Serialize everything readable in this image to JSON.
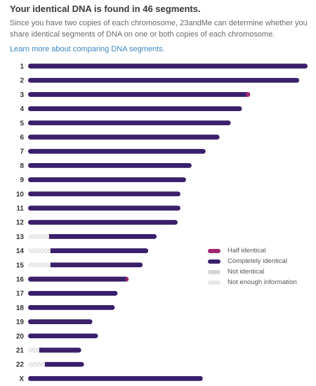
{
  "header": {
    "title": "Your identical DNA is found in 46 segments.",
    "description": "Since you have two copies of each chromosome, 23andMe can determine whether you share identical segments of DNA on one or both copies of each chromosome.",
    "link_text": "Learn more about comparing DNA segments."
  },
  "colors": {
    "half_identical": "#a0286e",
    "completely_identical": "#3a1f6b",
    "not_identical": "#d6d6d6",
    "not_enough_information": "#e8e8e8"
  },
  "legend": [
    {
      "key": "half_identical",
      "label": "Half identical"
    },
    {
      "key": "completely_identical",
      "label": "Completely identical"
    },
    {
      "key": "not_identical",
      "label": "Not identical"
    },
    {
      "key": "not_enough_information",
      "label": "Not enough information"
    }
  ],
  "chart_data": {
    "type": "bar",
    "unit": "fraction of chromosome 1 length",
    "chromosomes": [
      {
        "label": "1",
        "length": 1.0,
        "segments": [
          {
            "start": 0,
            "end": 1.0,
            "state": "completely_identical"
          }
        ]
      },
      {
        "label": "2",
        "length": 0.97,
        "segments": [
          {
            "start": 0,
            "end": 0.97,
            "state": "completely_identical"
          }
        ]
      },
      {
        "label": "3",
        "length": 0.795,
        "segments": [
          {
            "start": 0,
            "end": 0.78,
            "state": "completely_identical"
          },
          {
            "start": 0.78,
            "end": 0.795,
            "state": "half_identical"
          }
        ]
      },
      {
        "label": "4",
        "length": 0.765,
        "segments": [
          {
            "start": 0,
            "end": 0.765,
            "state": "completely_identical"
          }
        ]
      },
      {
        "label": "5",
        "length": 0.725,
        "segments": [
          {
            "start": 0,
            "end": 0.725,
            "state": "completely_identical"
          }
        ]
      },
      {
        "label": "6",
        "length": 0.685,
        "segments": [
          {
            "start": 0,
            "end": 0.685,
            "state": "completely_identical"
          }
        ]
      },
      {
        "label": "7",
        "length": 0.635,
        "segments": [
          {
            "start": 0,
            "end": 0.635,
            "state": "completely_identical"
          }
        ]
      },
      {
        "label": "8",
        "length": 0.585,
        "segments": [
          {
            "start": 0,
            "end": 0.585,
            "state": "completely_identical"
          }
        ]
      },
      {
        "label": "9",
        "length": 0.565,
        "segments": [
          {
            "start": 0,
            "end": 0.565,
            "state": "completely_identical"
          }
        ]
      },
      {
        "label": "10",
        "length": 0.545,
        "segments": [
          {
            "start": 0,
            "end": 0.545,
            "state": "completely_identical"
          }
        ]
      },
      {
        "label": "11",
        "length": 0.545,
        "segments": [
          {
            "start": 0,
            "end": 0.545,
            "state": "completely_identical"
          }
        ]
      },
      {
        "label": "12",
        "length": 0.535,
        "segments": [
          {
            "start": 0,
            "end": 0.535,
            "state": "completely_identical"
          }
        ]
      },
      {
        "label": "13",
        "length": 0.46,
        "segments": [
          {
            "start": 0,
            "end": 0.075,
            "state": "not_enough_information"
          },
          {
            "start": 0.075,
            "end": 0.46,
            "state": "completely_identical"
          }
        ]
      },
      {
        "label": "14",
        "length": 0.43,
        "segments": [
          {
            "start": 0,
            "end": 0.08,
            "state": "not_enough_information"
          },
          {
            "start": 0.08,
            "end": 0.43,
            "state": "completely_identical"
          }
        ]
      },
      {
        "label": "15",
        "length": 0.41,
        "segments": [
          {
            "start": 0,
            "end": 0.08,
            "state": "not_enough_information"
          },
          {
            "start": 0.08,
            "end": 0.41,
            "state": "completely_identical"
          }
        ]
      },
      {
        "label": "16",
        "length": 0.36,
        "segments": [
          {
            "start": 0,
            "end": 0.35,
            "state": "completely_identical"
          },
          {
            "start": 0.35,
            "end": 0.36,
            "state": "half_identical"
          }
        ]
      },
      {
        "label": "17",
        "length": 0.32,
        "segments": [
          {
            "start": 0,
            "end": 0.32,
            "state": "completely_identical"
          }
        ]
      },
      {
        "label": "18",
        "length": 0.31,
        "segments": [
          {
            "start": 0,
            "end": 0.31,
            "state": "completely_identical"
          }
        ]
      },
      {
        "label": "19",
        "length": 0.23,
        "segments": [
          {
            "start": 0,
            "end": 0.23,
            "state": "completely_identical"
          }
        ]
      },
      {
        "label": "20",
        "length": 0.25,
        "segments": [
          {
            "start": 0,
            "end": 0.25,
            "state": "completely_identical"
          }
        ]
      },
      {
        "label": "21",
        "length": 0.19,
        "segments": [
          {
            "start": 0,
            "end": 0.04,
            "state": "not_enough_information"
          },
          {
            "start": 0.04,
            "end": 0.19,
            "state": "completely_identical"
          }
        ]
      },
      {
        "label": "22",
        "length": 0.2,
        "segments": [
          {
            "start": 0,
            "end": 0.06,
            "state": "not_enough_information"
          },
          {
            "start": 0.06,
            "end": 0.2,
            "state": "completely_identical"
          }
        ]
      },
      {
        "label": "X",
        "length": 0.625,
        "segments": [
          {
            "start": 0,
            "end": 0.625,
            "state": "completely_identical"
          }
        ]
      }
    ]
  }
}
